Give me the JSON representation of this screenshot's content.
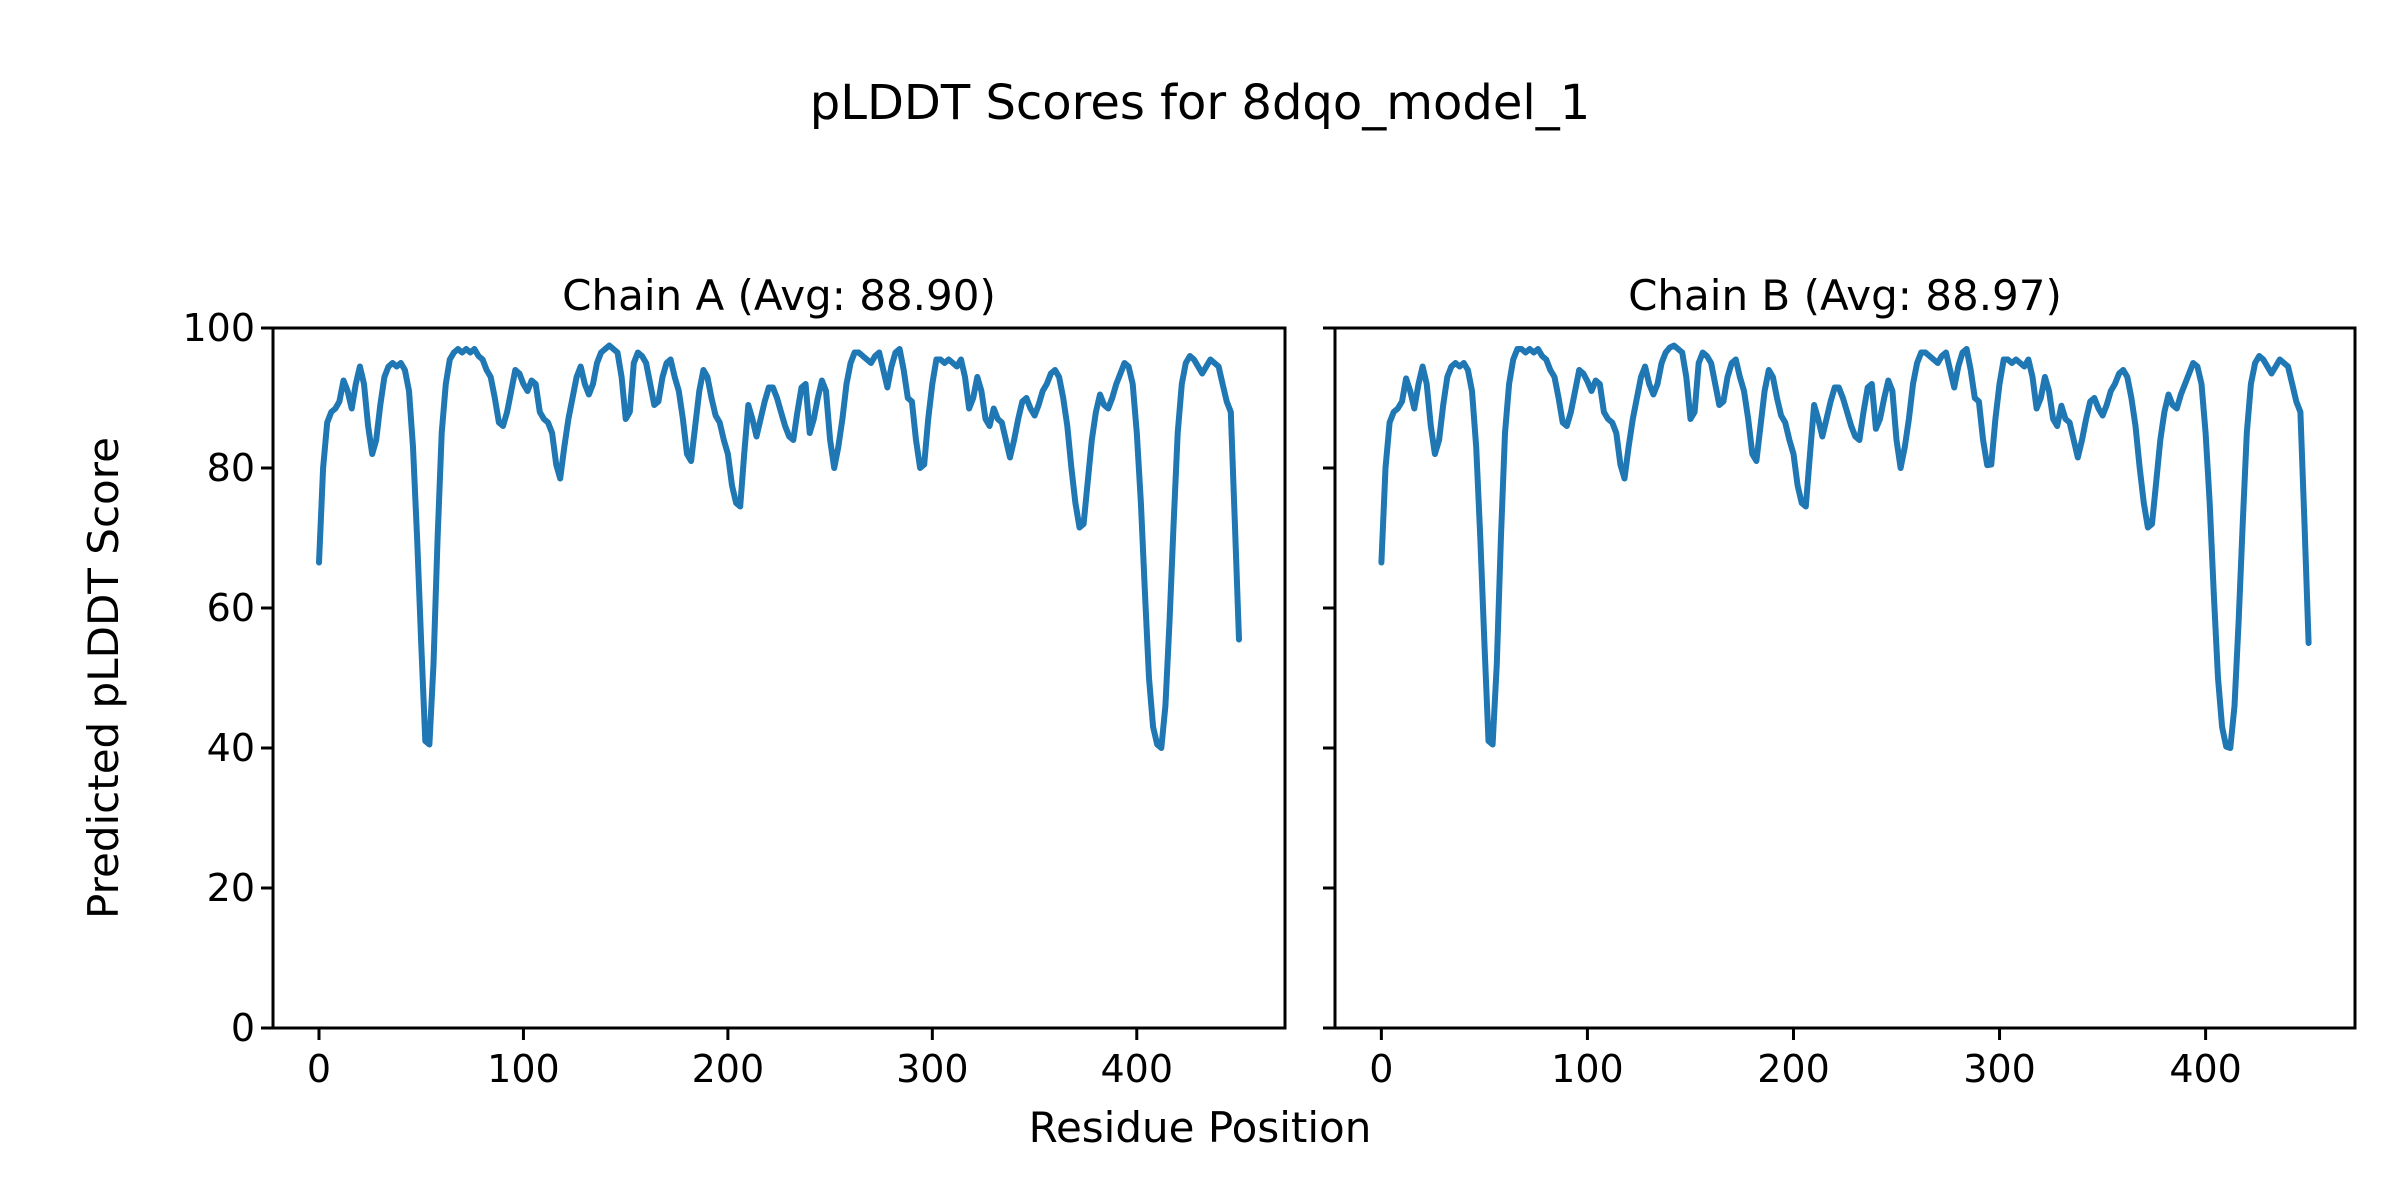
{
  "figure": {
    "suptitle": "pLDDT Scores for 8dqo_model_1",
    "xlabel": "Residue Position",
    "ylabel": "Predicted pLDDT Score",
    "background": "#ffffff",
    "text_color": "#000000"
  },
  "chart_data": {
    "type": "line",
    "title": "pLDDT Scores for 8dqo_model_1",
    "xlabel": "Residue Position",
    "ylabel": "Predicted pLDDT Score",
    "line_color": "#1f77b4",
    "spine_color": "#000000",
    "grid": false,
    "legend_position": "none",
    "xlim": [
      -22.5,
      472.5
    ],
    "ylim": [
      0,
      100
    ],
    "xticks": [
      0,
      100,
      200,
      300,
      400
    ],
    "yticks": [
      0,
      20,
      40,
      60,
      80,
      100
    ],
    "x": [
      0,
      2,
      4,
      6,
      8,
      10,
      12,
      14,
      16,
      18,
      20,
      22,
      24,
      26,
      28,
      30,
      32,
      34,
      36,
      38,
      40,
      42,
      44,
      46,
      48,
      50,
      52,
      54,
      56,
      58,
      60,
      62,
      64,
      66,
      68,
      70,
      72,
      74,
      76,
      78,
      80,
      82,
      84,
      86,
      88,
      90,
      92,
      94,
      96,
      98,
      100,
      102,
      104,
      106,
      108,
      110,
      112,
      114,
      116,
      118,
      120,
      122,
      124,
      126,
      128,
      130,
      132,
      134,
      136,
      138,
      140,
      142,
      144,
      146,
      148,
      150,
      152,
      154,
      156,
      158,
      160,
      162,
      164,
      166,
      168,
      170,
      172,
      174,
      176,
      178,
      180,
      182,
      184,
      186,
      188,
      190,
      192,
      194,
      196,
      198,
      200,
      202,
      204,
      206,
      208,
      210,
      212,
      214,
      216,
      218,
      220,
      222,
      224,
      226,
      228,
      230,
      232,
      234,
      236,
      238,
      240,
      242,
      244,
      246,
      248,
      250,
      252,
      254,
      256,
      258,
      260,
      262,
      264,
      266,
      268,
      270,
      272,
      274,
      276,
      278,
      280,
      282,
      284,
      286,
      288,
      290,
      292,
      294,
      296,
      298,
      300,
      302,
      304,
      306,
      308,
      310,
      312,
      314,
      316,
      318,
      320,
      322,
      324,
      326,
      328,
      330,
      332,
      334,
      336,
      338,
      340,
      342,
      344,
      346,
      348,
      350,
      352,
      354,
      356,
      358,
      360,
      362,
      364,
      366,
      368,
      370,
      372,
      374,
      376,
      378,
      380,
      382,
      384,
      386,
      388,
      390,
      392,
      394,
      396,
      398,
      400,
      402,
      404,
      406,
      408,
      410,
      412,
      414,
      416,
      418,
      420,
      422,
      424,
      426,
      428,
      430,
      432,
      434,
      436,
      438,
      440,
      442,
      444,
      446,
      448,
      450
    ],
    "subplots": [
      {
        "chain": "A",
        "title": "Chain A (Avg: 88.90)",
        "avg": 88.9,
        "y": [
          66.5,
          80,
          86.5,
          88,
          88.5,
          89.5,
          92.5,
          91,
          88.5,
          92,
          94.5,
          92,
          86,
          82,
          84,
          89,
          93,
          94.5,
          95,
          94.5,
          95,
          94,
          91,
          83,
          70,
          55,
          41,
          40.5,
          52,
          70,
          85,
          92,
          95.5,
          96.5,
          97,
          96.5,
          97,
          96.5,
          97,
          96,
          95.5,
          94,
          93,
          90,
          86.5,
          86,
          88,
          91,
          94,
          93.5,
          92,
          91,
          92.5,
          92,
          88,
          87,
          86.5,
          85,
          80.5,
          78.5,
          83,
          87,
          90,
          93,
          94.5,
          92,
          90.5,
          92,
          95,
          96.5,
          97,
          97.5,
          97,
          96.5,
          93,
          87,
          88,
          95,
          96.5,
          96,
          95,
          92,
          89,
          89.5,
          93,
          95,
          95.5,
          93,
          91,
          87,
          82,
          81,
          86,
          91,
          94,
          93,
          90,
          87.5,
          86.5,
          84,
          82,
          77.5,
          75,
          74.5,
          82,
          89,
          87,
          84.5,
          87,
          89.5,
          91.5,
          91.5,
          90,
          88,
          86,
          84.5,
          84,
          88,
          91.5,
          92,
          85,
          87,
          90,
          92.5,
          91,
          84,
          80,
          83,
          87,
          92,
          95,
          96.5,
          96.5,
          96,
          95.5,
          95,
          96,
          96.5,
          94,
          91.5,
          94.5,
          96.5,
          97,
          94,
          90,
          89.5,
          84,
          80,
          80.5,
          87,
          92,
          95.5,
          95.5,
          95,
          95.5,
          95,
          94.5,
          95.5,
          93,
          88.5,
          90,
          93,
          91,
          87,
          86,
          88.5,
          87,
          86.5,
          84,
          81.5,
          84,
          87,
          89.5,
          90,
          88.5,
          87.5,
          89,
          91,
          92,
          93.5,
          94,
          93,
          90,
          86,
          80,
          75,
          71.5,
          72,
          78,
          84,
          88,
          90.5,
          89,
          88.5,
          90,
          92,
          93.5,
          95,
          94.5,
          92,
          85,
          75,
          62,
          50,
          43,
          40.5,
          40,
          46,
          58,
          72,
          85,
          92,
          95,
          96,
          95.5,
          94.5,
          93.5,
          94.5,
          95.5,
          95,
          94.5,
          92,
          89.5,
          88,
          72,
          55.5
        ]
      },
      {
        "chain": "B",
        "title": "Chain B (Avg: 88.97)",
        "avg": 88.97,
        "y": [
          66.5,
          80,
          86.5,
          88,
          88.5,
          89.5,
          92.8,
          91,
          88.5,
          92,
          94.5,
          92,
          86,
          82,
          84,
          89,
          93,
          94.5,
          95,
          94.5,
          95,
          94,
          91,
          83,
          70,
          55,
          41,
          40.5,
          52,
          70,
          85,
          92,
          95.5,
          97,
          97,
          96.5,
          97,
          96.5,
          97,
          96,
          95.5,
          94,
          93,
          90,
          86.5,
          86,
          88,
          91,
          94,
          93.5,
          92.4,
          91,
          92.5,
          92,
          88,
          87,
          86.5,
          85,
          80.5,
          78.5,
          83,
          87,
          90,
          93,
          94.5,
          92,
          90.5,
          92,
          95,
          96.5,
          97.2,
          97.5,
          97,
          96.5,
          93,
          87,
          88,
          95,
          96.5,
          96,
          95,
          92,
          89,
          89.5,
          93,
          95,
          95.5,
          93,
          91,
          87,
          82,
          81,
          86,
          91,
          94,
          93,
          90,
          87.5,
          86.5,
          84,
          82,
          77.5,
          75,
          74.5,
          82,
          89,
          87,
          84.5,
          87,
          89.5,
          91.5,
          91.5,
          90,
          88,
          86,
          84.5,
          84,
          88,
          91.5,
          92,
          85.6,
          87,
          90,
          92.5,
          91,
          84,
          80,
          83,
          87,
          92,
          95,
          96.5,
          96.5,
          96,
          95.5,
          95,
          96,
          96.5,
          94,
          91.5,
          94.5,
          96.5,
          97,
          94,
          90,
          89.5,
          84,
          80.4,
          80.5,
          87,
          92,
          95.5,
          95.5,
          95,
          95.5,
          95,
          94.5,
          95.5,
          93,
          88.5,
          90,
          93,
          91,
          87,
          86,
          88.9,
          87,
          86.5,
          84,
          81.5,
          84,
          87,
          89.5,
          90,
          88.5,
          87.5,
          89,
          91,
          92,
          93.5,
          94,
          93,
          90,
          86,
          80,
          75,
          71.5,
          72,
          78,
          84,
          88,
          90.5,
          89,
          88.5,
          90.5,
          92,
          93.5,
          95,
          94.5,
          92,
          85,
          75,
          62,
          50,
          43,
          40.2,
          40,
          46,
          58,
          72,
          85,
          92,
          95,
          96,
          95.5,
          94.5,
          93.5,
          94.5,
          95.5,
          95,
          94.5,
          92,
          89.5,
          88,
          72,
          55
        ]
      }
    ]
  }
}
